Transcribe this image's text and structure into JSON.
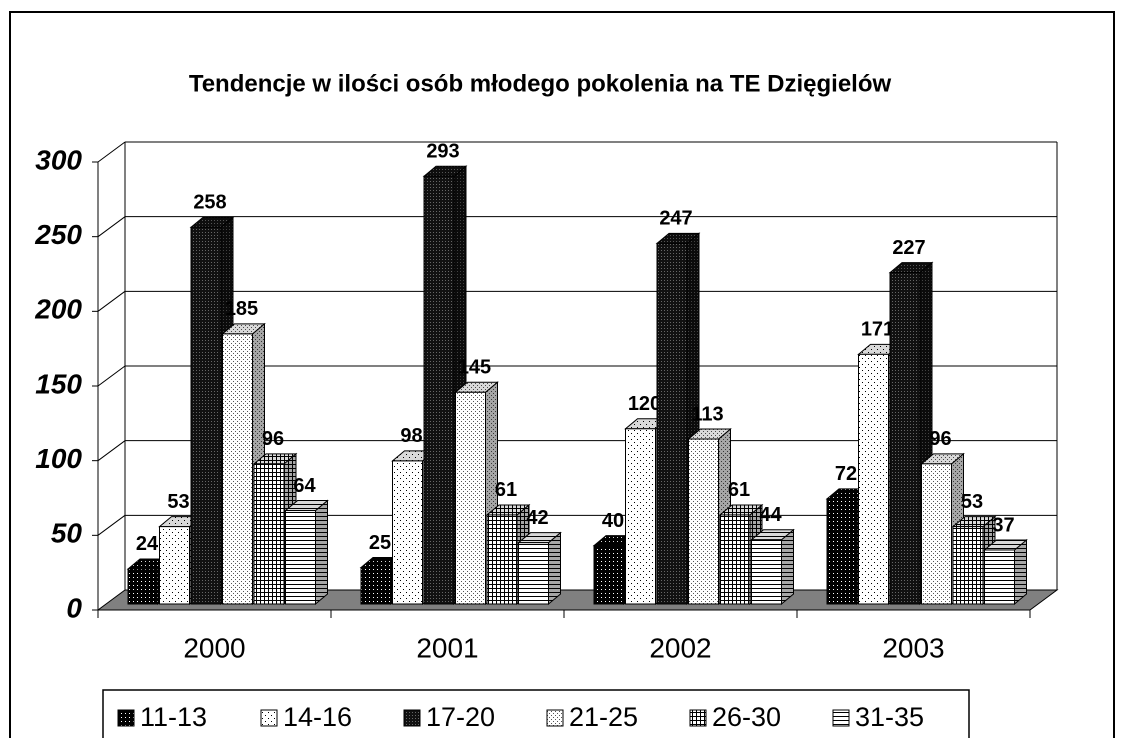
{
  "chart_data": {
    "type": "bar3d",
    "title": "Tendencje w ilości osób młodego pokolenia na TE Dzięgielów",
    "categories": [
      "2000",
      "2001",
      "2002",
      "2003"
    ],
    "series": [
      {
        "name": "11-13",
        "color": "#000000",
        "pattern": "dots-dark",
        "values": [
          24,
          25,
          40,
          72
        ]
      },
      {
        "name": "14-16",
        "color": "#ffffff",
        "pattern": "dots-sparse",
        "values": [
          53,
          98,
          120,
          171
        ]
      },
      {
        "name": "17-20",
        "color": "#111111",
        "pattern": "dots-dense-dark",
        "values": [
          258,
          293,
          247,
          227
        ]
      },
      {
        "name": "21-25",
        "color": "#ffffff",
        "pattern": "dots-dense",
        "values": [
          185,
          145,
          113,
          96
        ]
      },
      {
        "name": "26-30",
        "color": "#ffffff",
        "pattern": "grid",
        "values": [
          96,
          61,
          61,
          53
        ]
      },
      {
        "name": "31-35",
        "color": "#ffffff",
        "pattern": "hlines",
        "values": [
          64,
          42,
          44,
          37
        ]
      }
    ],
    "ylim": [
      0,
      300
    ],
    "yticks": [
      0,
      50,
      100,
      150,
      200,
      250,
      300
    ],
    "grid": true,
    "legend": "bottom"
  }
}
